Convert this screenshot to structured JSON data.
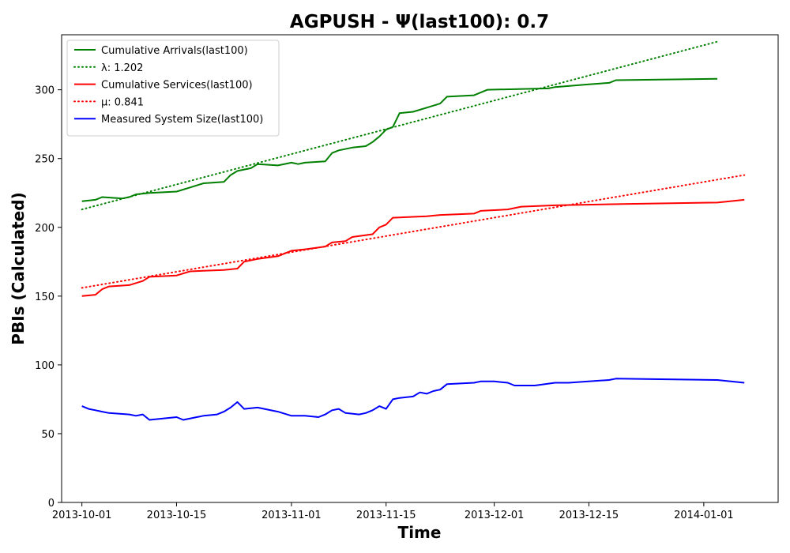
{
  "chart_data": {
    "type": "line",
    "title": "AGPUSH -  Ψ(last100): 0.7",
    "xlabel": "Time",
    "ylabel": "PBIs (Calculated)",
    "ylim": [
      0,
      340
    ],
    "xlim": [
      "2013-09-28",
      "2014-01-12"
    ],
    "x_ticks": [
      "2013-10-01",
      "2013-10-15",
      "2013-11-01",
      "2013-11-15",
      "2013-12-01",
      "2013-12-15",
      "2014-01-01"
    ],
    "y_ticks": [
      0,
      50,
      100,
      150,
      200,
      250,
      300
    ],
    "grid": false,
    "legend_position": "top-left",
    "series": [
      {
        "name": "Cumulative Arrivals(last100)",
        "color": "#008000",
        "style": "solid",
        "points": [
          [
            "2013-10-01",
            219
          ],
          [
            "2013-10-03",
            220
          ],
          [
            "2013-10-04",
            222
          ],
          [
            "2013-10-07",
            221
          ],
          [
            "2013-10-08",
            222
          ],
          [
            "2013-10-09",
            224
          ],
          [
            "2013-10-11",
            225
          ],
          [
            "2013-10-15",
            226
          ],
          [
            "2013-10-17",
            229
          ],
          [
            "2013-10-19",
            232
          ],
          [
            "2013-10-22",
            233
          ],
          [
            "2013-10-23",
            238
          ],
          [
            "2013-10-24",
            241
          ],
          [
            "2013-10-26",
            243
          ],
          [
            "2013-10-27",
            246
          ],
          [
            "2013-10-30",
            245
          ],
          [
            "2013-11-01",
            247
          ],
          [
            "2013-11-02",
            246
          ],
          [
            "2013-11-03",
            247
          ],
          [
            "2013-11-06",
            248
          ],
          [
            "2013-11-07",
            254
          ],
          [
            "2013-11-08",
            256
          ],
          [
            "2013-11-10",
            258
          ],
          [
            "2013-11-12",
            259
          ],
          [
            "2013-11-13",
            262
          ],
          [
            "2013-11-14",
            266
          ],
          [
            "2013-11-15",
            271
          ],
          [
            "2013-11-16",
            273
          ],
          [
            "2013-11-17",
            283
          ],
          [
            "2013-11-19",
            284
          ],
          [
            "2013-11-21",
            287
          ],
          [
            "2013-11-23",
            290
          ],
          [
            "2013-11-24",
            295
          ],
          [
            "2013-11-28",
            296
          ],
          [
            "2013-11-30",
            300
          ],
          [
            "2013-12-09",
            301
          ],
          [
            "2013-12-10",
            302
          ],
          [
            "2013-12-15",
            304
          ],
          [
            "2013-12-18",
            305
          ],
          [
            "2013-12-19",
            307
          ],
          [
            "2014-01-03",
            308
          ]
        ]
      },
      {
        "name": "λ: 1.202",
        "color": "#008000",
        "style": "dotted",
        "points": [
          [
            "2013-10-01",
            213
          ],
          [
            "2014-01-03",
            335
          ]
        ]
      },
      {
        "name": "Cumulative Services(last100)",
        "color": "#ff0000",
        "style": "solid",
        "points": [
          [
            "2013-10-01",
            150
          ],
          [
            "2013-10-03",
            151
          ],
          [
            "2013-10-04",
            155
          ],
          [
            "2013-10-05",
            157
          ],
          [
            "2013-10-08",
            158
          ],
          [
            "2013-10-10",
            161
          ],
          [
            "2013-10-11",
            164
          ],
          [
            "2013-10-15",
            165
          ],
          [
            "2013-10-17",
            168
          ],
          [
            "2013-10-22",
            169
          ],
          [
            "2013-10-24",
            170
          ],
          [
            "2013-10-25",
            175
          ],
          [
            "2013-10-27",
            177
          ],
          [
            "2013-10-30",
            179
          ],
          [
            "2013-10-31",
            181
          ],
          [
            "2013-11-01",
            183
          ],
          [
            "2013-11-03",
            184
          ],
          [
            "2013-11-06",
            186
          ],
          [
            "2013-11-07",
            189
          ],
          [
            "2013-11-09",
            190
          ],
          [
            "2013-11-10",
            193
          ],
          [
            "2013-11-13",
            195
          ],
          [
            "2013-11-14",
            200
          ],
          [
            "2013-11-15",
            202
          ],
          [
            "2013-11-16",
            207
          ],
          [
            "2013-11-21",
            208
          ],
          [
            "2013-11-23",
            209
          ],
          [
            "2013-11-28",
            210
          ],
          [
            "2013-11-29",
            212
          ],
          [
            "2013-12-03",
            213
          ],
          [
            "2013-12-05",
            215
          ],
          [
            "2013-12-10",
            216
          ],
          [
            "2013-12-20",
            217
          ],
          [
            "2014-01-03",
            218
          ],
          [
            "2014-01-07",
            220
          ]
        ]
      },
      {
        "name": "μ: 0.841",
        "color": "#ff0000",
        "style": "dotted",
        "points": [
          [
            "2013-10-01",
            156
          ],
          [
            "2014-01-07",
            238
          ]
        ]
      },
      {
        "name": "Measured System Size(last100)",
        "color": "#0000ff",
        "style": "solid",
        "points": [
          [
            "2013-10-01",
            70
          ],
          [
            "2013-10-02",
            68
          ],
          [
            "2013-10-03",
            67
          ],
          [
            "2013-10-04",
            66
          ],
          [
            "2013-10-05",
            65
          ],
          [
            "2013-10-08",
            64
          ],
          [
            "2013-10-09",
            63
          ],
          [
            "2013-10-10",
            64
          ],
          [
            "2013-10-11",
            60
          ],
          [
            "2013-10-13",
            61
          ],
          [
            "2013-10-15",
            62
          ],
          [
            "2013-10-16",
            60
          ],
          [
            "2013-10-18",
            62
          ],
          [
            "2013-10-19",
            63
          ],
          [
            "2013-10-21",
            64
          ],
          [
            "2013-10-22",
            66
          ],
          [
            "2013-10-23",
            69
          ],
          [
            "2013-10-24",
            73
          ],
          [
            "2013-10-25",
            68
          ],
          [
            "2013-10-27",
            69
          ],
          [
            "2013-10-30",
            66
          ],
          [
            "2013-11-01",
            63
          ],
          [
            "2013-11-03",
            63
          ],
          [
            "2013-11-05",
            62
          ],
          [
            "2013-11-06",
            64
          ],
          [
            "2013-11-07",
            67
          ],
          [
            "2013-11-08",
            68
          ],
          [
            "2013-11-09",
            65
          ],
          [
            "2013-11-11",
            64
          ],
          [
            "2013-11-12",
            65
          ],
          [
            "2013-11-13",
            67
          ],
          [
            "2013-11-14",
            70
          ],
          [
            "2013-11-15",
            68
          ],
          [
            "2013-11-16",
            75
          ],
          [
            "2013-11-17",
            76
          ],
          [
            "2013-11-19",
            77
          ],
          [
            "2013-11-20",
            80
          ],
          [
            "2013-11-21",
            79
          ],
          [
            "2013-11-22",
            81
          ],
          [
            "2013-11-23",
            82
          ],
          [
            "2013-11-24",
            86
          ],
          [
            "2013-11-28",
            87
          ],
          [
            "2013-11-29",
            88
          ],
          [
            "2013-12-01",
            88
          ],
          [
            "2013-12-03",
            87
          ],
          [
            "2013-12-04",
            85
          ],
          [
            "2013-12-07",
            85
          ],
          [
            "2013-12-10",
            87
          ],
          [
            "2013-12-12",
            87
          ],
          [
            "2013-12-18",
            89
          ],
          [
            "2013-12-19",
            90
          ],
          [
            "2014-01-03",
            89
          ],
          [
            "2014-01-07",
            87
          ]
        ]
      }
    ]
  }
}
